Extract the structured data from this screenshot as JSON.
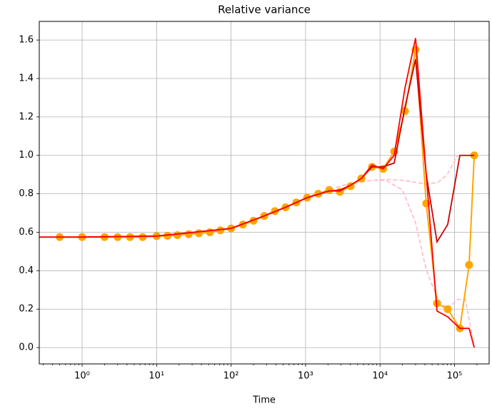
{
  "chart_data": {
    "type": "line",
    "title": "Relative variance",
    "xlabel": "Time",
    "xscale": "log",
    "grid": true,
    "xlim": [
      0.266,
      291700
    ],
    "ylim": [
      -0.085,
      1.697
    ],
    "xticks": [
      {
        "value": 1,
        "label": "10⁰"
      },
      {
        "value": 10,
        "label": "10¹"
      },
      {
        "value": 100,
        "label": "10²"
      },
      {
        "value": 1000,
        "label": "10³"
      },
      {
        "value": 10000,
        "label": "10⁴"
      },
      {
        "value": 100000,
        "label": "10⁵"
      }
    ],
    "yticks": [
      {
        "value": 0,
        "label": "0.0"
      },
      0.2,
      0.4,
      0.6,
      0.8,
      {
        "value": 1,
        "label": "1.0"
      },
      1.2,
      1.4,
      1.6
    ],
    "series": [
      {
        "color": "pink",
        "dashed": true,
        "markers": false,
        "x": [
          1000,
          2000,
          4000,
          8000,
          12000,
          20000,
          30000,
          42000,
          60000,
          80000,
          110000,
          184000
        ],
        "values": [
          0.78,
          0.82,
          0.855,
          0.87,
          0.875,
          0.87,
          0.86,
          0.85,
          0.86,
          0.9,
          1.0,
          1.0
        ]
      },
      {
        "color": "pink",
        "dashed": true,
        "markers": false,
        "x": [
          1000,
          2000,
          4000,
          8000,
          12000,
          20000,
          30000,
          42000,
          60000,
          80000,
          110000,
          140000,
          184000
        ],
        "values": [
          0.78,
          0.82,
          0.855,
          0.87,
          0.87,
          0.82,
          0.65,
          0.4,
          0.25,
          0.2,
          0.25,
          0.25,
          0.0
        ]
      },
      {
        "color": "orange",
        "dashed": false,
        "markers": true,
        "x": [
          0.5,
          1,
          2,
          3,
          4.4,
          6.5,
          10,
          14,
          19,
          27,
          37,
          52,
          72,
          100,
          144,
          200,
          279,
          388,
          540,
          752,
          1050,
          1480,
          2080,
          2890,
          4030,
          5610,
          7800,
          11000,
          15500,
          21600,
          30000,
          41700,
          58200,
          81000,
          118000,
          157000,
          184000
        ],
        "values": [
          0.575,
          0.575,
          0.575,
          0.575,
          0.575,
          0.575,
          0.58,
          0.582,
          0.585,
          0.59,
          0.595,
          0.6,
          0.61,
          0.62,
          0.64,
          0.66,
          0.685,
          0.71,
          0.73,
          0.755,
          0.78,
          0.8,
          0.82,
          0.81,
          0.84,
          0.88,
          0.94,
          0.93,
          1.02,
          1.23,
          1.55,
          0.75,
          0.23,
          0.2,
          0.1,
          0.43,
          1.0
        ]
      },
      {
        "color": "#cc0000",
        "dashed": false,
        "markers": false,
        "x": [
          0.266,
          1,
          10,
          100,
          279,
          540,
          1050,
          2080,
          2890,
          4030,
          5610,
          7800,
          11000,
          15500,
          21600,
          30000,
          41700,
          58200,
          81000,
          118000,
          157000,
          184000
        ],
        "values": [
          0.575,
          0.575,
          0.58,
          0.62,
          0.685,
          0.73,
          0.78,
          0.815,
          0.815,
          0.845,
          0.88,
          0.94,
          0.94,
          0.96,
          1.25,
          1.5,
          0.9,
          0.55,
          0.64,
          1.0,
          1.0,
          1.0
        ]
      },
      {
        "color": "red",
        "dashed": false,
        "markers": false,
        "x": [
          0.266,
          1,
          10,
          100,
          279,
          540,
          1050,
          2080,
          2890,
          4030,
          5610,
          7800,
          11000,
          15500,
          21600,
          30000,
          41700,
          58200,
          81000,
          118000,
          157000,
          184000
        ],
        "values": [
          0.575,
          0.575,
          0.58,
          0.62,
          0.685,
          0.73,
          0.78,
          0.815,
          0.82,
          0.845,
          0.88,
          0.95,
          0.93,
          1.0,
          1.35,
          1.61,
          0.9,
          0.19,
          0.16,
          0.1,
          0.1,
          0.0
        ]
      }
    ]
  }
}
